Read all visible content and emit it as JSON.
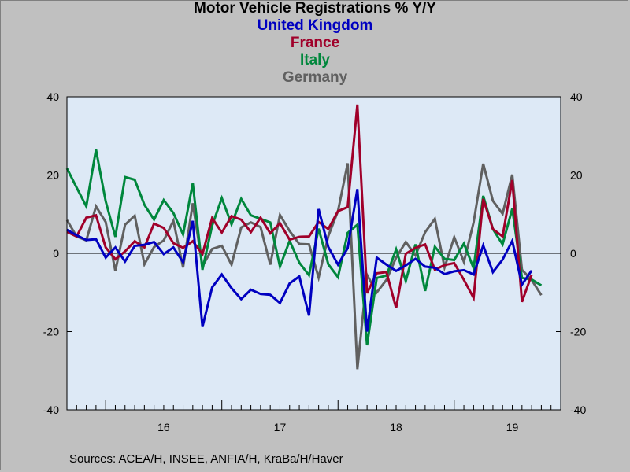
{
  "colors": {
    "background": "#c0c0c0",
    "plot_background": "#dde9f6",
    "united_kingdom": "#0000c0",
    "france": "#a0002a",
    "italy": "#00873c",
    "germany": "#606060"
  },
  "source": "Sources:  ACEA/H, INSEE, ANFIA/H, KraBa/H/Haver",
  "chart_data": {
    "type": "line",
    "title": "Motor Vehicle Registrations % Y/Y",
    "subtitles": [
      "United Kingdom",
      "France",
      "Italy",
      "Germany"
    ],
    "x_start": "2015-09",
    "x_end": "2019-12",
    "ylim": [
      -40,
      40
    ],
    "yticks_left": [
      "40",
      "20",
      "0",
      "-20",
      "-40"
    ],
    "yticks_right": [
      "40",
      "20",
      "0",
      "-20",
      "-40"
    ],
    "ytick_values": [
      40,
      20,
      0,
      -20,
      -40
    ],
    "year_labels": [
      {
        "label": "16",
        "x": "2016-07"
      },
      {
        "label": "17",
        "x": "2017-07"
      },
      {
        "label": "18",
        "x": "2018-07"
      },
      {
        "label": "19",
        "x": "2019-07"
      }
    ],
    "grid": false,
    "zero_line": true,
    "months": [
      "2015-09",
      "2015-10",
      "2015-11",
      "2015-12",
      "2016-01",
      "2016-02",
      "2016-03",
      "2016-04",
      "2016-05",
      "2016-06",
      "2016-07",
      "2016-08",
      "2016-09",
      "2016-10",
      "2016-11",
      "2016-12",
      "2017-01",
      "2017-02",
      "2017-03",
      "2017-04",
      "2017-05",
      "2017-06",
      "2017-07",
      "2017-08",
      "2017-09",
      "2017-10",
      "2017-11",
      "2017-12",
      "2018-01",
      "2018-02",
      "2018-03",
      "2018-04",
      "2018-05",
      "2018-06",
      "2018-07",
      "2018-08",
      "2018-09",
      "2018-10",
      "2018-11",
      "2018-12",
      "2019-01",
      "2019-02",
      "2019-03",
      "2019-04",
      "2019-05",
      "2019-06",
      "2019-07",
      "2019-08",
      "2019-09",
      "2019-10",
      "2019-11"
    ],
    "series": [
      {
        "name": "Germany",
        "color_key": "germany",
        "values": [
          8.5,
          4.3,
          3.3,
          12,
          8,
          -4.5,
          7.3,
          9.6,
          -2.8,
          1.6,
          3.3,
          8.3,
          -3.6,
          12.8,
          -3.3,
          1.1,
          1.9,
          -2.9,
          6.6,
          7.9,
          6.7,
          -2.9,
          9.8,
          5.7,
          2.4,
          2.3,
          -6.2,
          4.4,
          10.8,
          23,
          -29.6,
          -5.5,
          -10,
          -6.8,
          -1.1,
          2.9,
          -0.5,
          5.4,
          8.8,
          -3.6,
          4.1,
          -2.2,
          7.9,
          22.9,
          13.4,
          10.1,
          20.1,
          -4.2,
          -6.8,
          -10.7,
          null
        ]
      },
      {
        "name": "Italy",
        "color_key": "italy",
        "values": [
          21.7,
          16.8,
          12,
          26.5,
          13.3,
          4.2,
          19.5,
          18.8,
          12.4,
          8.6,
          13.6,
          10.3,
          4.8,
          17.9,
          -4.2,
          7.1,
          14.1,
          7.4,
          13.9,
          9.7,
          8.8,
          7.9,
          -3.4,
          3.2,
          -2.4,
          -5.6,
          6.3,
          -2.8,
          -6.1,
          5.2,
          7.3,
          -23.5,
          -6.3,
          -5.7,
          1,
          -7.1,
          2.3,
          -9.6,
          1.7,
          -1.4,
          -1.7,
          2.5,
          -3.8,
          14.7,
          6.2,
          2.3,
          11.4,
          -6.3,
          -6.7,
          -8.2,
          null
        ]
      },
      {
        "name": "France",
        "color_key": "france",
        "values": [
          5.5,
          4.3,
          9.1,
          9.7,
          1.5,
          -1.5,
          0.5,
          3.1,
          1.5,
          7.6,
          6.5,
          2.6,
          1.4,
          3.1,
          -0.2,
          9,
          5.3,
          9.5,
          8.6,
          5.4,
          9.1,
          5.1,
          7.7,
          3.5,
          4.2,
          4.3,
          8,
          6.2,
          10.8,
          11.8,
          38,
          -10.2,
          -5.1,
          -4.8,
          -14,
          -0.1,
          1.4,
          2.3,
          -4.2,
          -3,
          -2.5,
          -6.8,
          -11.4,
          13.9,
          6.2,
          4.3,
          18.7,
          -12.4,
          -5.5,
          null,
          null
        ]
      },
      {
        "name": "United Kingdom",
        "color_key": "united_kingdom",
        "values": [
          6,
          4.6,
          3.4,
          3.6,
          -1.1,
          1.5,
          -2.1,
          1.9,
          2.2,
          2.9,
          -0.2,
          1.5,
          -2.3,
          8.3,
          -18.8,
          -8.7,
          -5.4,
          -8.9,
          -11.7,
          -9.3,
          -10.4,
          -10.6,
          -12.7,
          -7.7,
          -5.9,
          -15.9,
          11.3,
          1.6,
          -2.9,
          1.3,
          16.4,
          -20,
          -1.1,
          -2.9,
          -4.5,
          -3.1,
          -1.4,
          -3.4,
          -3.7,
          -5.3,
          -4.6,
          -4.3,
          -5.4,
          2,
          -4.8,
          -1.6,
          3.2,
          -8,
          -4.4,
          null,
          null
        ]
      }
    ]
  }
}
